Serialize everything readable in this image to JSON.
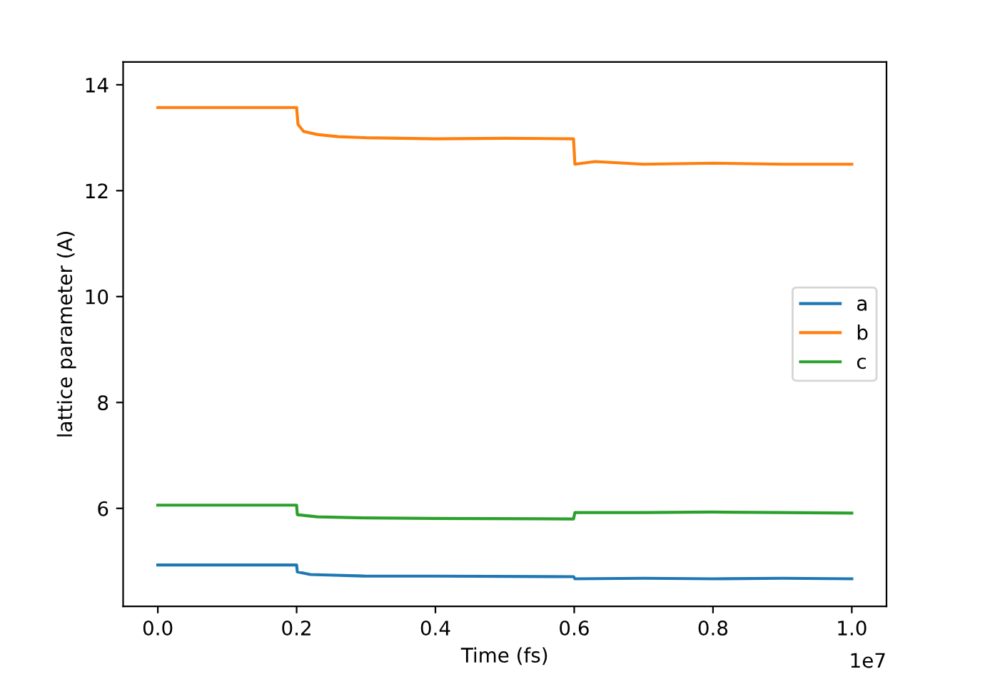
{
  "chart_data": {
    "type": "line",
    "xlabel": "Time (fs)",
    "ylabel": "lattice parameter (A)",
    "xlim": [
      -0.05,
      1.05
    ],
    "ylim": [
      4.15,
      14.43
    ],
    "xticks": [
      {
        "value": 0,
        "label": "0.0"
      },
      0.2,
      0.4,
      0.6,
      0.8,
      {
        "value": 1,
        "label": "1.0"
      }
    ],
    "yticks": [
      6,
      8,
      10,
      12,
      14
    ],
    "annotations": [
      "1e7"
    ],
    "legend": "right",
    "grid": false,
    "series": [
      {
        "name": "a",
        "color": "#1f77b4",
        "x": [
          0,
          0.2,
          0.201,
          0.22,
          0.3,
          0.4,
          0.599,
          0.601,
          0.7,
          0.8,
          0.9,
          1.0
        ],
        "values": [
          4.93,
          4.93,
          4.8,
          4.75,
          4.72,
          4.72,
          4.71,
          4.67,
          4.68,
          4.67,
          4.68,
          4.67
        ]
      },
      {
        "name": "b",
        "color": "#ff7f0e",
        "x": [
          0,
          0.2,
          0.202,
          0.21,
          0.23,
          0.26,
          0.3,
          0.4,
          0.5,
          0.599,
          0.601,
          0.63,
          0.7,
          0.8,
          0.9,
          1.0
        ],
        "values": [
          13.57,
          13.57,
          13.25,
          13.12,
          13.06,
          13.02,
          13.0,
          12.98,
          12.99,
          12.98,
          12.5,
          12.55,
          12.5,
          12.52,
          12.5,
          12.5
        ]
      },
      {
        "name": "c",
        "color": "#2ca02c",
        "x": [
          0,
          0.2,
          0.201,
          0.23,
          0.3,
          0.4,
          0.599,
          0.601,
          0.7,
          0.8,
          0.9,
          1.0
        ],
        "values": [
          6.06,
          6.06,
          5.88,
          5.84,
          5.82,
          5.81,
          5.8,
          5.92,
          5.92,
          5.93,
          5.92,
          5.91
        ]
      }
    ]
  }
}
